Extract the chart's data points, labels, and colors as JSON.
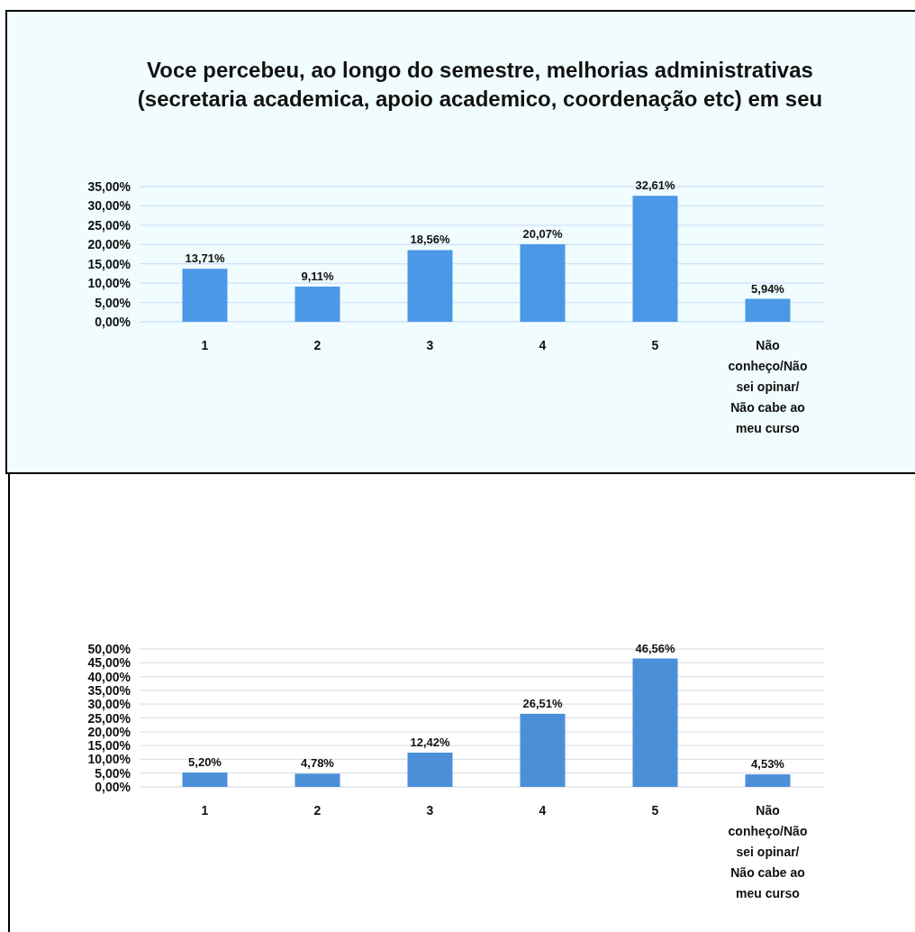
{
  "chart_data": [
    {
      "type": "bar",
      "title": "Voce percebeu, ao longo do semestre, melhorias administrativas (secretaria academica, apoio academico, coordenação etc) em seu",
      "categories": [
        "1",
        "2",
        "3",
        "4",
        "5",
        "Não conheço/Não sei opinar/ Não cabe ao meu curso"
      ],
      "values": [
        13.71,
        9.11,
        18.56,
        20.07,
        32.61,
        5.94
      ],
      "value_labels": [
        "13,71%",
        "9,11%",
        "18,56%",
        "20,07%",
        "32,61%",
        "5,94%"
      ],
      "color": "#4a98e6",
      "ylim": [
        0,
        35
      ],
      "yticks": [
        {
          "value": 0,
          "label": "0,00%"
        },
        {
          "value": 5,
          "label": "5,00%"
        },
        {
          "value": 10,
          "label": "10,00%"
        },
        {
          "value": 15,
          "label": "15,00%"
        },
        {
          "value": 20,
          "label": "20,00%"
        },
        {
          "value": 25,
          "label": "25,00%"
        },
        {
          "value": 30,
          "label": "30,00%"
        },
        {
          "value": 35,
          "label": "35,00%"
        }
      ],
      "grid": "y"
    },
    {
      "type": "bar",
      "categories": [
        "1",
        "2",
        "3",
        "4",
        "5",
        "Não conheço/Não sei opinar/ Não cabe ao meu curso"
      ],
      "values": [
        5.2,
        4.78,
        12.42,
        26.51,
        46.56,
        4.53
      ],
      "value_labels": [
        "5,20%",
        "4,78%",
        "12,42%",
        "26,51%",
        "46,56%",
        "4,53%"
      ],
      "color": "#4b8fd8",
      "ylim": [
        0,
        50
      ],
      "yticks": [
        {
          "value": 0,
          "label": "0,00%"
        },
        {
          "value": 5,
          "label": "5,00%"
        },
        {
          "value": 10,
          "label": "10,00%"
        },
        {
          "value": 15,
          "label": "15,00%"
        },
        {
          "value": 20,
          "label": "20,00%"
        },
        {
          "value": 25,
          "label": "25,00%"
        },
        {
          "value": 30,
          "label": "30,00%"
        },
        {
          "value": 35,
          "label": "35,00%"
        },
        {
          "value": 40,
          "label": "40,00%"
        },
        {
          "value": 45,
          "label": "45,00%"
        },
        {
          "value": 50,
          "label": "50,00%"
        }
      ],
      "grid": "y"
    }
  ]
}
